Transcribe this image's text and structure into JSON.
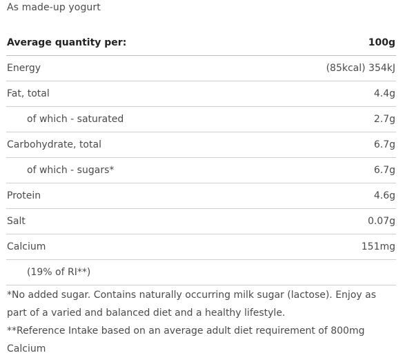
{
  "subtitle": "As made-up yogurt",
  "table": {
    "header": {
      "label": "Average quantity per:",
      "unit": "100g"
    },
    "rows": [
      {
        "name": "Energy",
        "value": "(85kcal) 354kJ",
        "indent": false
      },
      {
        "name": "Fat, total",
        "value": "4.4g",
        "indent": false
      },
      {
        "name": "of which - saturated",
        "value": "2.7g",
        "indent": true
      },
      {
        "name": "Carbohydrate, total",
        "value": "6.7g",
        "indent": false
      },
      {
        "name": "of which - sugars*",
        "value": "6.7g",
        "indent": true
      },
      {
        "name": "Protein",
        "value": "4.6g",
        "indent": false
      },
      {
        "name": "Salt",
        "value": "0.07g",
        "indent": false
      },
      {
        "name": "Calcium",
        "value": "151mg",
        "indent": false
      },
      {
        "name": "(19% of RI**)",
        "value": "",
        "indent": true
      }
    ]
  },
  "footnotes": [
    "*No added sugar. Contains naturally occurring milk sugar (lactose). Enjoy as part of a varied and balanced diet and a healthy lifestyle.",
    "**Reference Intake based on an average adult diet requirement of 800mg Calcium"
  ]
}
